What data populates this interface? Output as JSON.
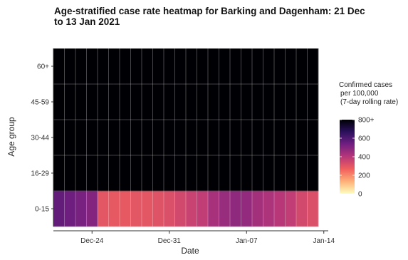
{
  "chart_data": {
    "type": "heatmap",
    "title": "Age-stratified case rate heatmap for Barking and Dagenham: 21 Dec to 13 Jan 2021",
    "xlabel": "Date",
    "ylabel": "Age group",
    "x": [
      "2020-12-21",
      "2020-12-22",
      "2020-12-23",
      "2020-12-24",
      "2020-12-25",
      "2020-12-26",
      "2020-12-27",
      "2020-12-28",
      "2020-12-29",
      "2020-12-30",
      "2020-12-31",
      "2021-01-01",
      "2021-01-02",
      "2021-01-03",
      "2021-01-04",
      "2021-01-05",
      "2021-01-06",
      "2021-01-07",
      "2021-01-08",
      "2021-01-09",
      "2021-01-10",
      "2021-01-11",
      "2021-01-12",
      "2021-01-13"
    ],
    "x_tick_labels": [
      "Dec-24",
      "Dec-31",
      "Jan-07",
      "Jan-14"
    ],
    "x_tick_values": [
      "2020-12-24",
      "2020-12-31",
      "2021-01-07",
      "2021-01-14"
    ],
    "y_categories": [
      "0-15",
      "16-29",
      "30-44",
      "45-59",
      "60+"
    ],
    "series": [
      {
        "name": "0-15",
        "values": [
          560,
          540,
          520,
          500,
          300,
          290,
          290,
          300,
          300,
          310,
          320,
          340,
          360,
          380,
          430,
          460,
          480,
          470,
          440,
          420,
          400,
          380,
          340,
          320
        ]
      },
      {
        "name": "16-29",
        "values": [
          850,
          850,
          850,
          850,
          850,
          850,
          850,
          850,
          850,
          850,
          850,
          850,
          850,
          850,
          850,
          850,
          850,
          850,
          850,
          850,
          850,
          850,
          850,
          850
        ]
      },
      {
        "name": "30-44",
        "values": [
          850,
          850,
          850,
          850,
          850,
          850,
          850,
          850,
          850,
          850,
          850,
          850,
          850,
          850,
          850,
          850,
          850,
          850,
          850,
          850,
          850,
          850,
          850,
          850
        ]
      },
      {
        "name": "45-59",
        "values": [
          850,
          850,
          850,
          850,
          850,
          850,
          850,
          850,
          850,
          850,
          850,
          850,
          850,
          850,
          850,
          850,
          850,
          850,
          850,
          850,
          850,
          850,
          850,
          850
        ]
      },
      {
        "name": "60+",
        "values": [
          850,
          850,
          850,
          850,
          850,
          850,
          850,
          850,
          850,
          850,
          850,
          850,
          850,
          850,
          850,
          850,
          850,
          850,
          850,
          850,
          850,
          850,
          850,
          850
        ]
      }
    ],
    "legend": {
      "title_lines": [
        "Confirmed cases",
        "per 100,000",
        "(7-day rolling rate)"
      ],
      "tick_labels": [
        "800+",
        "600",
        "400",
        "200",
        "0"
      ],
      "tick_values": [
        800,
        600,
        400,
        200,
        0
      ],
      "range": [
        0,
        800
      ],
      "placement": "right"
    },
    "colorscale": [
      "#fcfdbf",
      "#feb078",
      "#f1605d",
      "#b73779",
      "#721f81",
      "#2c115f",
      "#000004"
    ]
  }
}
